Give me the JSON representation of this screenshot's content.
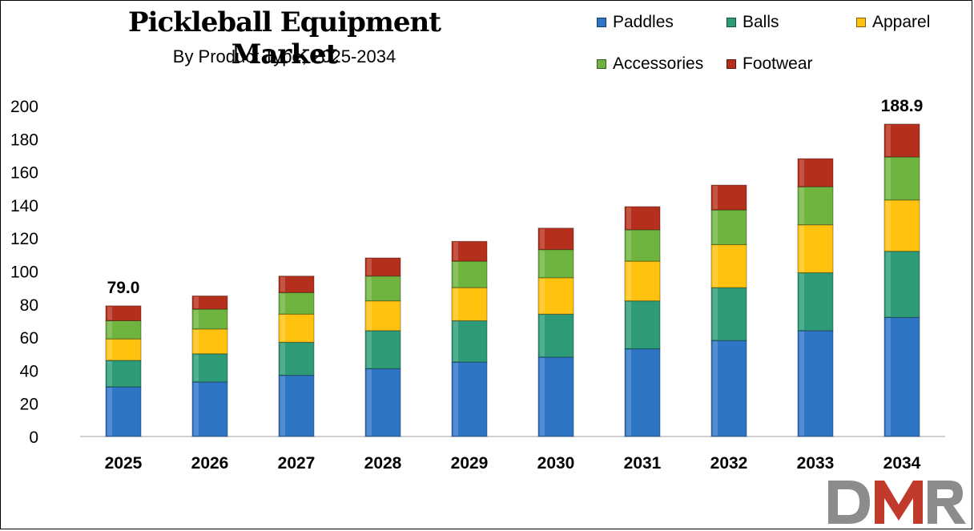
{
  "chart_data": {
    "type": "bar",
    "stacked": true,
    "title": "Pickleball Equipment Market",
    "subtitle": "By Product Type, 2025-2034",
    "categories": [
      "2025",
      "2026",
      "2027",
      "2028",
      "2029",
      "2030",
      "2031",
      "2032",
      "2033",
      "2034"
    ],
    "series": [
      {
        "name": "Paddles",
        "color": "#2E75C6",
        "values": [
          30,
          33,
          37,
          41,
          45,
          48,
          53,
          58,
          64,
          72
        ]
      },
      {
        "name": "Balls",
        "color": "#2E9B78",
        "values": [
          16,
          17,
          20,
          23,
          25,
          26,
          29,
          32,
          35,
          40
        ]
      },
      {
        "name": "Apparel",
        "color": "#FFC20E",
        "values": [
          13,
          15,
          17,
          18,
          20,
          22,
          24,
          26,
          29,
          31
        ]
      },
      {
        "name": "Accessories",
        "color": "#6FB43F",
        "values": [
          11,
          12,
          13,
          15,
          16,
          17,
          19,
          21,
          23,
          26
        ]
      },
      {
        "name": "Footwear",
        "color": "#B5301C",
        "values": [
          9,
          8,
          10,
          11,
          12,
          13,
          14,
          15,
          17,
          19.9
        ]
      }
    ],
    "total_labels": [
      {
        "category": "2025",
        "text": "79.0",
        "value": 79.0
      },
      {
        "category": "2034",
        "text": "188.9",
        "value": 188.9
      }
    ],
    "ylim": [
      0,
      200
    ],
    "yticks": [
      "0",
      "20",
      "40",
      "60",
      "80",
      "100",
      "120",
      "140",
      "160",
      "180",
      "200"
    ],
    "xlabel": "",
    "ylabel": "",
    "grid": false,
    "legend": "top-right"
  },
  "logo": {
    "text": "DMR",
    "letters": [
      "D",
      "M",
      "R"
    ],
    "colors": {
      "d": "#8C8C8C",
      "m": "#C0392B",
      "r": "#8C8C8C"
    }
  }
}
